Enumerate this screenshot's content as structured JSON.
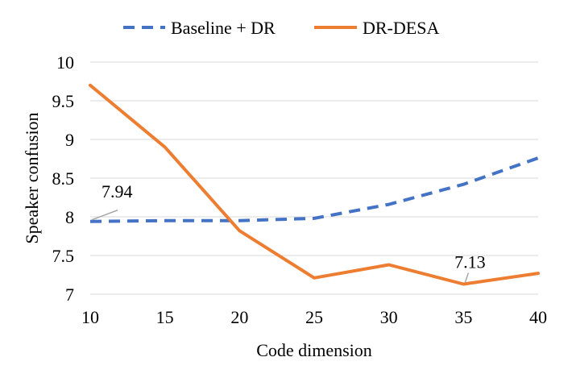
{
  "chart_data": {
    "type": "line",
    "title": "",
    "xlabel": "Code dimension",
    "ylabel": "Speaker confusion",
    "x": [
      10,
      15,
      20,
      25,
      30,
      35,
      40
    ],
    "xlim": [
      10,
      40
    ],
    "ylim": [
      7,
      10
    ],
    "yticks": [
      "7",
      "7.5",
      "8",
      "8.5",
      "9",
      "9.5",
      "10"
    ],
    "xticks": [
      "10",
      "15",
      "20",
      "25",
      "30",
      "35",
      "40"
    ],
    "grid": true,
    "legend_position": "top",
    "series": [
      {
        "name": "Baseline + DR",
        "style": "dashed",
        "color": "#4472C4",
        "values": [
          7.94,
          7.95,
          7.95,
          7.98,
          8.16,
          8.42,
          8.76
        ]
      },
      {
        "name": "DR-DESA",
        "style": "solid",
        "color": "#ED7D31",
        "values": [
          9.7,
          8.9,
          7.82,
          7.21,
          7.38,
          7.13,
          7.27
        ]
      }
    ],
    "annotations": [
      {
        "text": "7.94",
        "series": 0,
        "x": 10,
        "y": 7.94
      },
      {
        "text": "7.13",
        "series": 1,
        "x": 35,
        "y": 7.13
      }
    ]
  }
}
